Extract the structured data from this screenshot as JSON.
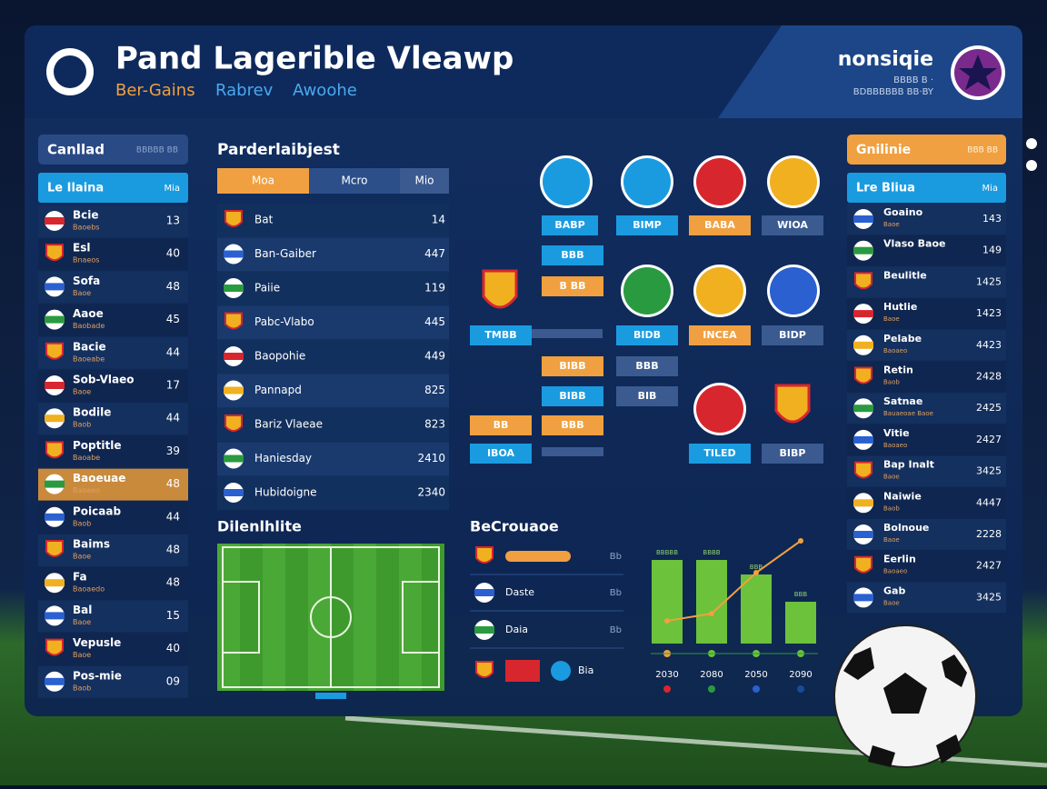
{
  "header": {
    "title": "Pand Lagerible Vleawp",
    "subtitle": [
      "Ber-Gains",
      "Rabrev",
      "Awoohe"
    ],
    "brand": "nonsiqie",
    "brand_lines": [
      "BBBB B ·",
      "BDBBBBBB BB·BY"
    ]
  },
  "left": {
    "title": "Canllad",
    "title_right": "BBBBB BB",
    "col_name": "Le Ilaina",
    "col_value": "Mia",
    "rows": [
      {
        "name": "Bcie",
        "sub": "Baoebs",
        "value": "13"
      },
      {
        "name": "Esl",
        "sub": "Bnaeos",
        "value": "40"
      },
      {
        "name": "Sofa",
        "sub": "Baoe",
        "value": "48"
      },
      {
        "name": "Aaoe",
        "sub": "Baobade",
        "value": "45"
      },
      {
        "name": "Bacie",
        "sub": "Baoeabe",
        "value": "44"
      },
      {
        "name": "Sob-Vlaeo",
        "sub": "Baoe",
        "value": "17"
      },
      {
        "name": "Bodile",
        "sub": "Baob",
        "value": "44"
      },
      {
        "name": "Poptitle",
        "sub": "Baoabe",
        "value": "39"
      },
      {
        "name": "Baoeuae",
        "sub": "Baoaeo",
        "value": "48"
      },
      {
        "name": "Poicaab",
        "sub": "Baob",
        "value": "44"
      },
      {
        "name": "Baims",
        "sub": "Baoe",
        "value": "48"
      },
      {
        "name": "Fa",
        "sub": "Baoaedo",
        "value": "48"
      },
      {
        "name": "Bal",
        "sub": "Baoe",
        "value": "15"
      },
      {
        "name": "Vepusle",
        "sub": "Baoe",
        "value": "40"
      },
      {
        "name": "Pos-mie",
        "sub": "Baob",
        "value": "09"
      }
    ]
  },
  "middle": {
    "title": "Parderlaibjest",
    "tabs": [
      "Moa",
      "Mcro",
      "Mio"
    ],
    "rows": [
      {
        "name": "Bat",
        "value": "14"
      },
      {
        "name": "Ban-Gaiber",
        "value": "447"
      },
      {
        "name": "Paiie",
        "value": "119"
      },
      {
        "name": "Pabc-Vlabo",
        "value": "445"
      },
      {
        "name": "Baopohie",
        "value": "449"
      },
      {
        "name": "Pannapd",
        "value": "825"
      },
      {
        "name": "Bariz Vlaeae",
        "value": "823"
      },
      {
        "name": "Haniesday",
        "value": "2410"
      },
      {
        "name": "Hubidoigne",
        "value": "2340"
      }
    ]
  },
  "bracket": {
    "labels": [
      "BABP",
      "BIMP",
      "BABA",
      "WIOA",
      "BBB",
      "B BB",
      "TMBB",
      "BIDB",
      "INCEA",
      "BIDP",
      "BIBB",
      "BBB",
      "BIBB",
      "BIB",
      "BB",
      "BBB",
      "IBOA",
      "TILED",
      "BIBP"
    ]
  },
  "right": {
    "title": "Gnilinie",
    "title_right": "BBB BB",
    "col_name": "Lre Bliua",
    "col_value": "Mia",
    "rows": [
      {
        "name": "Goaino",
        "sub": "Baoe",
        "value": "143"
      },
      {
        "name": "Vlaso Baoe",
        "sub": "",
        "value": "149"
      },
      {
        "name": "Beulitle",
        "sub": "",
        "value": "1425"
      },
      {
        "name": "Hutlie",
        "sub": "Baoe",
        "value": "1423"
      },
      {
        "name": "Pelabe",
        "sub": "Baoaeo",
        "value": "4423"
      },
      {
        "name": "Retin",
        "sub": "Baob",
        "value": "2428"
      },
      {
        "name": "Satnae",
        "sub": "Bauaeoae Baoe",
        "value": "2425"
      },
      {
        "name": "Vitie",
        "sub": "Baoaeo",
        "value": "2427"
      },
      {
        "name": "Bap Inalt",
        "sub": "Baoe",
        "value": "3425"
      },
      {
        "name": "Naiwie",
        "sub": "Baob",
        "value": "4447"
      },
      {
        "name": "Bolnoue",
        "sub": "Baoe",
        "value": "2228"
      },
      {
        "name": "Eerlin",
        "sub": "Baoaeo",
        "value": "2427"
      },
      {
        "name": "Gab",
        "sub": "Baoe",
        "value": "3425"
      }
    ]
  },
  "pitch": {
    "title": "Dilenlhlite"
  },
  "results": {
    "title": "BeCrouaoe",
    "rows": [
      {
        "name": "",
        "value": "Bb"
      },
      {
        "name": "Daste",
        "value": "Bb"
      },
      {
        "name": "Daia",
        "value": "Bb"
      },
      {
        "name": "Bia",
        "value": ""
      }
    ]
  },
  "chart_data": {
    "type": "bar",
    "categories": [
      "2030",
      "2080",
      "2050",
      "2090"
    ],
    "values": [
      92,
      92,
      76,
      46
    ],
    "color": "#6cc23a",
    "bar_labels": [
      "BBBBB",
      "BBBB",
      "BBB",
      "BBB"
    ],
    "line": {
      "values": [
        25,
        33,
        78,
        113
      ],
      "color": "#f0a040"
    }
  }
}
